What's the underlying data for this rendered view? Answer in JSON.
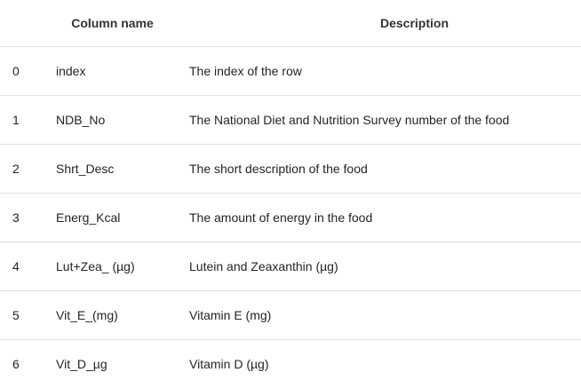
{
  "table": {
    "headers": {
      "index": "",
      "column_name": "Column name",
      "description": "Description"
    },
    "rows": [
      {
        "index": "0",
        "column_name": "index",
        "description": "The index of the row"
      },
      {
        "index": "1",
        "column_name": "NDB_No",
        "description": "The National Diet and Nutrition Survey number of the food"
      },
      {
        "index": "2",
        "column_name": "Shrt_Desc",
        "description": "The short description of the food"
      },
      {
        "index": "3",
        "column_name": "Energ_Kcal",
        "description": "The amount of energy in the food"
      },
      {
        "index": "4",
        "column_name": "Lut+Zea_ (µg)",
        "description": "Lutein and Zeaxanthin (µg)"
      },
      {
        "index": "5",
        "column_name": "Vit_E_(mg)",
        "description": "Vitamin E (mg)"
      },
      {
        "index": "6",
        "column_name": "Vit_D_µg",
        "description": "Vitamin D (µg)"
      }
    ]
  }
}
